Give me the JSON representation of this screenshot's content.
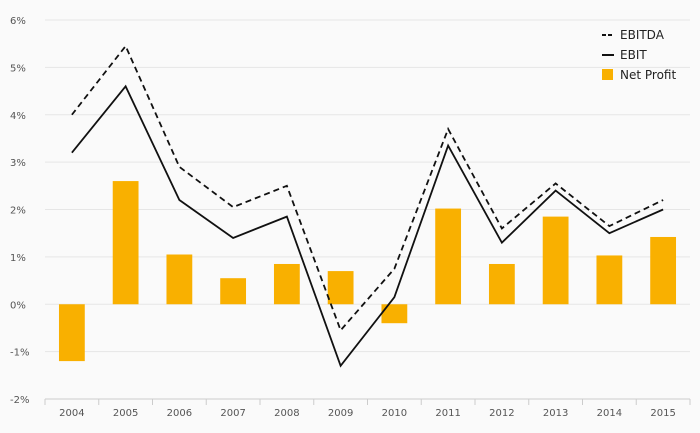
{
  "chart_data": {
    "type": "bar",
    "title": "",
    "xlabel": "",
    "ylabel": "",
    "categories": [
      "2004",
      "2005",
      "2006",
      "2007",
      "2008",
      "2009",
      "2010",
      "2011",
      "2012",
      "2013",
      "2014",
      "2015"
    ],
    "ylim": [
      -2,
      6
    ],
    "y_ticks": [
      "-2%",
      "-1%",
      "0%",
      "1%",
      "2%",
      "3%",
      "4%",
      "5%",
      "6%"
    ],
    "y_tick_values": [
      -2,
      -1,
      0,
      1,
      2,
      3,
      4,
      5,
      6
    ],
    "grid": true,
    "legend_position": "top-right",
    "series": [
      {
        "name": "EBITDA",
        "kind": "line",
        "style": "dashed",
        "color": "#111111",
        "values": [
          4.0,
          5.45,
          2.9,
          2.05,
          2.5,
          -0.55,
          0.75,
          3.7,
          1.6,
          2.55,
          1.65,
          2.2
        ]
      },
      {
        "name": "EBIT",
        "kind": "line",
        "style": "solid",
        "color": "#111111",
        "values": [
          3.2,
          4.6,
          2.2,
          1.4,
          1.85,
          -1.3,
          0.15,
          3.35,
          1.3,
          2.4,
          1.5,
          2.0
        ]
      },
      {
        "name": "Net Profit",
        "kind": "bar",
        "color": "#f9b000",
        "values": [
          -1.2,
          2.6,
          1.05,
          0.55,
          0.85,
          0.7,
          -0.4,
          2.02,
          0.85,
          1.85,
          1.03,
          1.42
        ]
      }
    ]
  }
}
